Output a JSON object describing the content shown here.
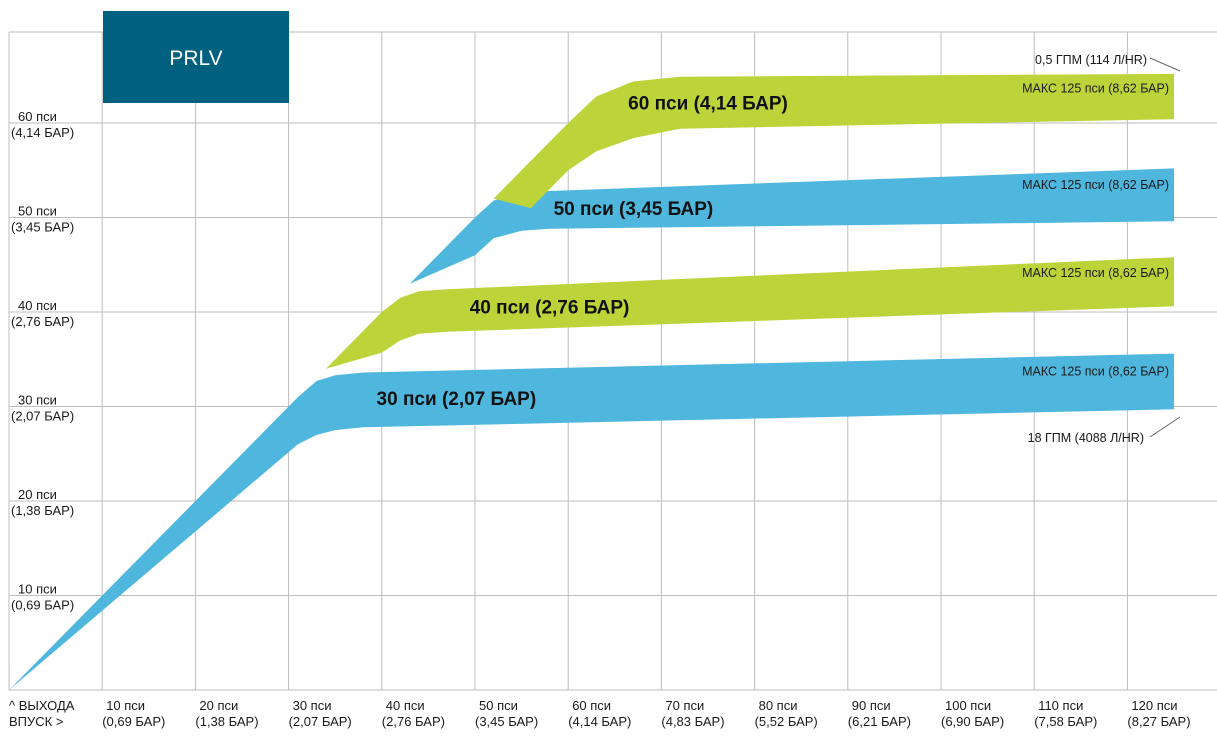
{
  "chart_data": {
    "type": "area",
    "title": "",
    "badge": "PRLV",
    "axis_corner": {
      "y_caption": "^ ВЫХОДА",
      "x_caption": "ВПУСК >"
    },
    "xlim": [
      0,
      125
    ],
    "ylim": [
      0,
      70
    ],
    "grid": true,
    "x_ticks": [
      {
        "value": 10,
        "line1": "10 пси",
        "line2": "(0,69 БАР)"
      },
      {
        "value": 20,
        "line1": "20 пси",
        "line2": "(1,38 БАР)"
      },
      {
        "value": 30,
        "line1": "30 пси",
        "line2": "(2,07 БАР)"
      },
      {
        "value": 40,
        "line1": "40 пси",
        "line2": "(2,76 БАР)"
      },
      {
        "value": 50,
        "line1": "50 пси",
        "line2": "(3,45 БАР)"
      },
      {
        "value": 60,
        "line1": "60 пси",
        "line2": "(4,14 БАР)"
      },
      {
        "value": 70,
        "line1": "70 пси",
        "line2": "(4,83 БАР)"
      },
      {
        "value": 80,
        "line1": "80 пси",
        "line2": "(5,52 БАР)"
      },
      {
        "value": 90,
        "line1": "90 пси",
        "line2": "(6,21 БАР)"
      },
      {
        "value": 100,
        "line1": "100 пси",
        "line2": "(6,90 БАР)"
      },
      {
        "value": 110,
        "line1": "110 пси",
        "line2": "(7,58 БАР)"
      },
      {
        "value": 120,
        "line1": "120 пси",
        "line2": "(8,27 БАР)"
      }
    ],
    "y_ticks": [
      {
        "value": 10,
        "line1": "10 пси",
        "line2": "(0,69 БАР)"
      },
      {
        "value": 20,
        "line1": "20 пси",
        "line2": "(1,38 БАР)"
      },
      {
        "value": 30,
        "line1": "30 пси",
        "line2": "(2,07 БАР)"
      },
      {
        "value": 40,
        "line1": "40 пси",
        "line2": "(2,76 БАР)"
      },
      {
        "value": 50,
        "line1": "50 пси",
        "line2": "(3,45 БАР)"
      },
      {
        "value": 60,
        "line1": "60 пси",
        "line2": "(4,14 БАР)"
      }
    ],
    "series": [
      {
        "name": "30 пси  (2,07 БАР)",
        "max_label": "МАКС 125 пси  (8,62 БАР)",
        "color": "#4fb7de",
        "upper": [
          [
            0,
            0
          ],
          [
            30,
            30
          ],
          [
            31,
            31
          ],
          [
            33,
            32.7
          ],
          [
            35,
            33.3
          ],
          [
            38,
            33.6
          ],
          [
            125,
            35.6
          ]
        ],
        "lower": [
          [
            0,
            0
          ],
          [
            31,
            26
          ],
          [
            33,
            27
          ],
          [
            35,
            27.5
          ],
          [
            38,
            27.8
          ],
          [
            125,
            29.7
          ]
        ]
      },
      {
        "name": "40 пси  (2,76 БАР)",
        "max_label": "МАКС 125 пси  (8,62 БАР)",
        "color": "#bcd43a",
        "upper": [
          [
            34,
            34
          ],
          [
            40,
            40
          ],
          [
            42,
            41.5
          ],
          [
            44,
            42.2
          ],
          [
            47,
            42.4
          ],
          [
            125,
            45.8
          ]
        ],
        "lower": [
          [
            34,
            34
          ],
          [
            40,
            35.7
          ],
          [
            42,
            37
          ],
          [
            44,
            37.7
          ],
          [
            47,
            37.9
          ],
          [
            125,
            40.6
          ]
        ]
      },
      {
        "name": "50 пси  (3,45 БАР)",
        "max_label": "МАКС 125 пси  (8,62 БАР)",
        "color": "#4fb7de",
        "upper": [
          [
            43,
            43
          ],
          [
            50,
            50
          ],
          [
            52,
            51.8
          ],
          [
            55,
            52.6
          ],
          [
            58,
            52.8
          ],
          [
            125,
            55.2
          ]
        ],
        "lower": [
          [
            43,
            43
          ],
          [
            50,
            46
          ],
          [
            52,
            47.8
          ],
          [
            55,
            48.6
          ],
          [
            58,
            48.8
          ],
          [
            125,
            49.6
          ]
        ]
      },
      {
        "name": "60 пси  (4,14 БАР)",
        "max_label": "МАКС 125 пси  (8,62 БАР)",
        "color": "#bcd43a",
        "upper": [
          [
            52,
            52
          ],
          [
            56,
            56
          ],
          [
            60,
            60
          ],
          [
            63,
            62.8
          ],
          [
            67,
            64.4
          ],
          [
            72,
            64.9
          ],
          [
            125,
            65.2
          ]
        ],
        "lower": [
          [
            52,
            52
          ],
          [
            56,
            51
          ],
          [
            60,
            55
          ],
          [
            63,
            57
          ],
          [
            67,
            58.4
          ],
          [
            72,
            59.4
          ],
          [
            125,
            60.4
          ]
        ]
      }
    ],
    "flow_labels": {
      "low": "0,5 ГПМ (114 Л/HR)",
      "high": "18 ГПМ (4088 Л/HR)"
    }
  }
}
